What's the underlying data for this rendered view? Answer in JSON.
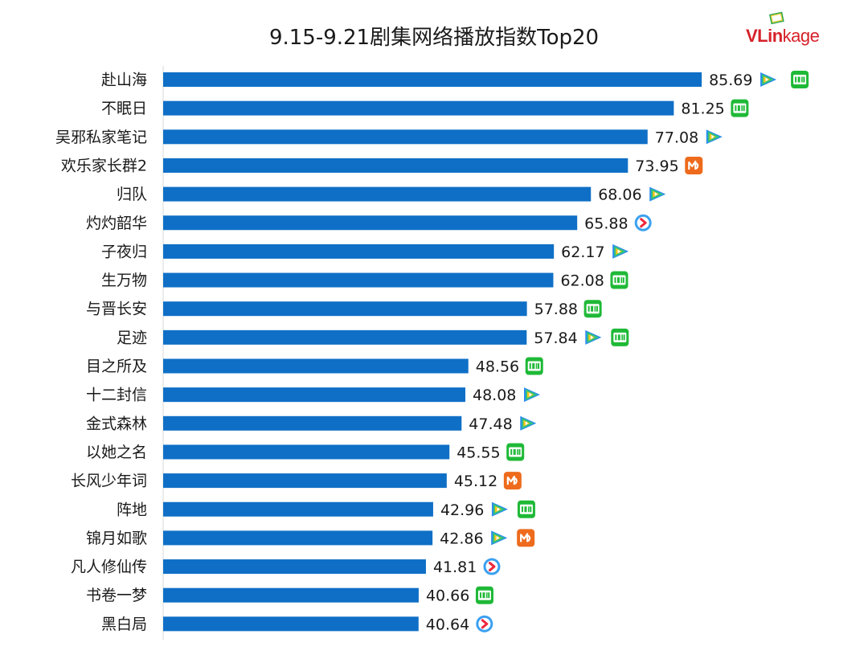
{
  "title": "9.15-9.21剧集网络播放指数Top20",
  "logo": {
    "text_v": "VLin",
    "text_rest": "kage"
  },
  "colors": {
    "bar": "#0f6fc6",
    "axis": "#d9d9d9",
    "text": "#1a1a1a",
    "tencent_blue": "#2a8cf0",
    "tencent_green": "#31c27c",
    "tencent_yellow": "#f7c518",
    "iqiyi": "#1fb937",
    "mango": "#ee6b1d",
    "youku_red": "#f0283c",
    "youku_blue": "#3aa0f0"
  },
  "chart_data": {
    "type": "bar",
    "orientation": "horizontal",
    "title": "9.15-9.21剧集网络播放指数Top20",
    "xlim": [
      0,
      100
    ],
    "categories": [
      "赴山海",
      "不眠日",
      "吴邪私家笔记",
      "欢乐家长群2",
      "归队",
      "灼灼韶华",
      "子夜归",
      "生万物",
      "与晋长安",
      "足迹",
      "目之所及",
      "十二封信",
      "金式森林",
      "以她之名",
      "长风少年词",
      "阵地",
      "锦月如歌",
      "凡人修仙传",
      "书卷一梦",
      "黑白局"
    ],
    "values": [
      85.69,
      81.25,
      77.08,
      73.95,
      68.06,
      65.88,
      62.17,
      62.08,
      57.88,
      57.84,
      48.56,
      48.08,
      47.48,
      45.55,
      45.12,
      42.96,
      42.86,
      41.81,
      40.66,
      40.64
    ],
    "labels": [
      "85.69",
      "81.25",
      "77.08",
      "73.95",
      "68.06",
      "65.88",
      "62.17",
      "62.08",
      "57.88",
      "57.84",
      "48.56",
      "48.08",
      "47.48",
      "45.55",
      "45.12",
      "42.96",
      "42.86",
      "41.81",
      "40.66",
      "40.64"
    ],
    "platform_icons": [
      [
        "tencent-video-icon",
        "iqiyi-icon"
      ],
      [
        "iqiyi-icon"
      ],
      [
        "tencent-video-icon"
      ],
      [
        "mango-tv-icon"
      ],
      [
        "tencent-video-icon"
      ],
      [
        "youku-icon"
      ],
      [
        "tencent-video-icon"
      ],
      [
        "iqiyi-icon"
      ],
      [
        "iqiyi-icon"
      ],
      [
        "tencent-video-icon",
        "iqiyi-icon"
      ],
      [
        "iqiyi-icon"
      ],
      [
        "tencent-video-icon"
      ],
      [
        "tencent-video-icon"
      ],
      [
        "iqiyi-icon"
      ],
      [
        "mango-tv-icon"
      ],
      [
        "tencent-video-icon",
        "iqiyi-icon"
      ],
      [
        "tencent-video-icon",
        "mango-tv-icon"
      ],
      [
        "youku-icon"
      ],
      [
        "iqiyi-icon"
      ],
      [
        "youku-icon"
      ]
    ]
  }
}
